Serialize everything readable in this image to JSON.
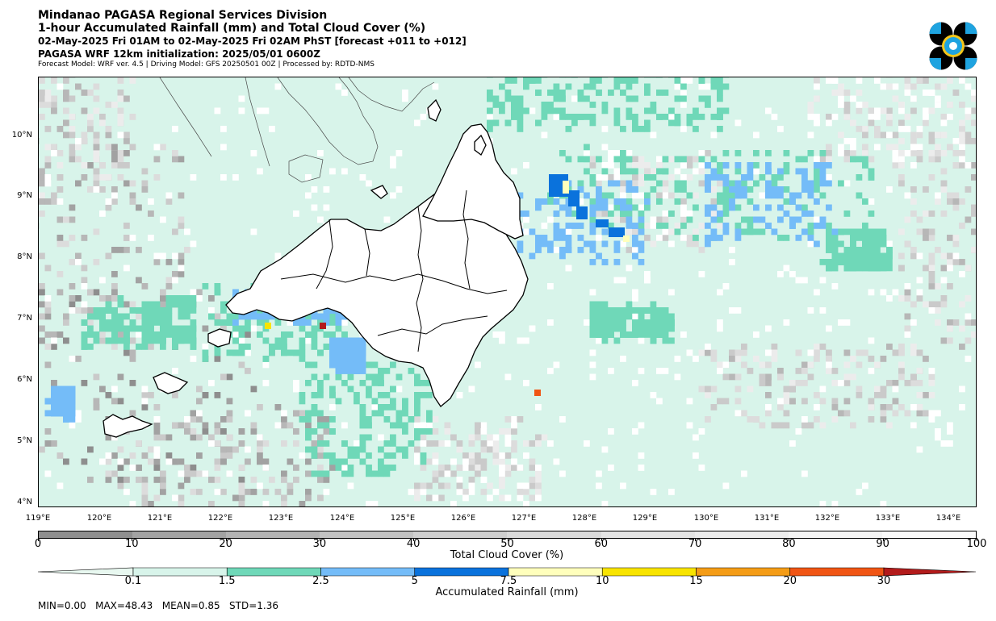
{
  "header": {
    "line1": "Mindanao PAGASA Regional Services Division",
    "line2": "1-hour Accumulated Rainfall (mm) and Total Cloud Cover (%)",
    "line3": "02-May-2025 Fri 01AM to 02-May-2025 Fri 02AM PhST [forecast +011 to +012]",
    "line4": "PAGASA WRF 12km initialization: 2025/05/01 0600Z",
    "line5": "Forecast Model: WRF ver. 4.5 | Driving Model: GFS 20250501 00Z | Processed by: RDTD-NMS"
  },
  "map": {
    "lat_labels": [
      "10°N",
      "9°N",
      "8°N",
      "7°N",
      "6°N",
      "5°N",
      "4°N"
    ],
    "lon_labels": [
      "119°E",
      "120°E",
      "121°E",
      "122°E",
      "123°E",
      "124°E",
      "125°E",
      "126°E",
      "127°E",
      "128°E",
      "129°E",
      "130°E",
      "131°E",
      "132°E",
      "133°E",
      "134°E"
    ]
  },
  "cloud_colorbar": {
    "title": "Total Cloud Cover (%)",
    "ticks": [
      "0",
      "10",
      "20",
      "30",
      "40",
      "50",
      "60",
      "70",
      "80",
      "90",
      "100"
    ],
    "colors": [
      "#8f8f8f",
      "#a3a3a3",
      "#b3b3b3",
      "#c2c2c2",
      "#cfcfcf",
      "#dadada",
      "#e4e4e4",
      "#ececec",
      "#f4f4f4",
      "#fbfbfb"
    ]
  },
  "rain_colorbar": {
    "title": "Accumulated Rainfall (mm)",
    "ticks": [
      "0.1",
      "1.5",
      "2.5",
      "5",
      "7.5",
      "10",
      "15",
      "20",
      "30"
    ],
    "colors": [
      "#e8f8f0",
      "#d8f4ea",
      "#6fd8b8",
      "#74bcf8",
      "#0a72dc",
      "#ffffbc",
      "#f8e400",
      "#f49c16",
      "#f05514",
      "#b31b1b"
    ]
  },
  "colors": {
    "light_mint": "#d8f4ea",
    "teal": "#6fd8b8",
    "light_blue": "#74bcf8",
    "dark_blue": "#0a72dc",
    "pale_yellow": "#ffffbc",
    "yellow": "#f8e400",
    "orange": "#f05514",
    "red": "#b31b1b"
  },
  "stats": "MIN=0.00   MAX=48.43   MEAN=0.85   STD=1.36"
}
